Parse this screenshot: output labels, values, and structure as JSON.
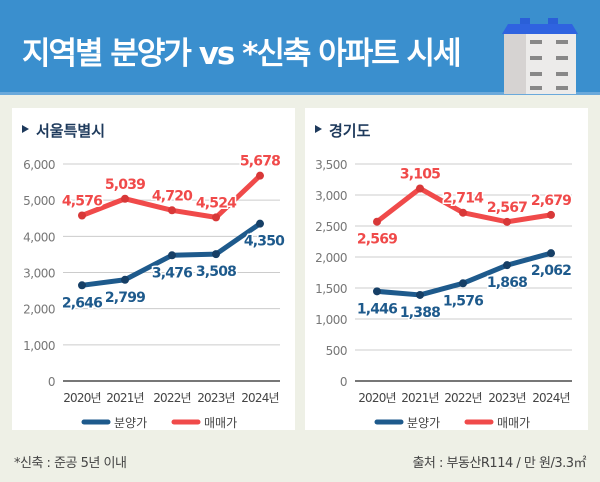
{
  "header": {
    "title": "지역별 분양가 vs *신축 아파트 시세"
  },
  "footer": {
    "note": "*신축 : 준공 5년 이내",
    "source": "출처 : 부동산R114 / 만 원/3.3㎡"
  },
  "colors": {
    "blue": "#1e5a8c",
    "red": "#f04a4a",
    "header": "#3a8fce"
  },
  "chart_data": [
    {
      "type": "line",
      "title": "서울특별시",
      "categories": [
        "2020년",
        "2021년",
        "2022년",
        "2023년",
        "2024년"
      ],
      "ylim": [
        0,
        6000
      ],
      "yticks": [
        0,
        1000,
        2000,
        3000,
        4000,
        5000,
        6000
      ],
      "ytick_labels": [
        "0",
        "1,000",
        "2,000",
        "3,000",
        "4,000",
        "5,000",
        "6,000"
      ],
      "series": [
        {
          "name": "분양가",
          "values": [
            2646,
            2799,
            3476,
            3508,
            4350
          ],
          "labels": [
            "2,646",
            "2,799",
            "3,476",
            "3,508",
            "4,350"
          ]
        },
        {
          "name": "매매가",
          "values": [
            4576,
            5039,
            4720,
            4524,
            5678
          ],
          "labels": [
            "4,576",
            "5,039",
            "4,720",
            "4,524",
            "5,678"
          ]
        }
      ],
      "legend": "bottom"
    },
    {
      "type": "line",
      "title": "경기도",
      "categories": [
        "2020년",
        "2021년",
        "2022년",
        "2023년",
        "2024년"
      ],
      "ylim": [
        0,
        3500
      ],
      "yticks": [
        0,
        500,
        1000,
        1500,
        2000,
        2500,
        3000,
        3500
      ],
      "ytick_labels": [
        "0",
        "500",
        "1,000",
        "1,500",
        "2,000",
        "2,500",
        "3,000",
        "3,500"
      ],
      "series": [
        {
          "name": "분양가",
          "values": [
            1446,
            1388,
            1576,
            1868,
            2062
          ],
          "labels": [
            "1,446",
            "1,388",
            "1,576",
            "1,868",
            "2,062"
          ]
        },
        {
          "name": "매매가",
          "values": [
            2569,
            3105,
            2714,
            2567,
            2679
          ],
          "labels": [
            "2,569",
            "3,105",
            "2,714",
            "2,567",
            "2,679"
          ]
        }
      ],
      "legend": "bottom"
    }
  ]
}
